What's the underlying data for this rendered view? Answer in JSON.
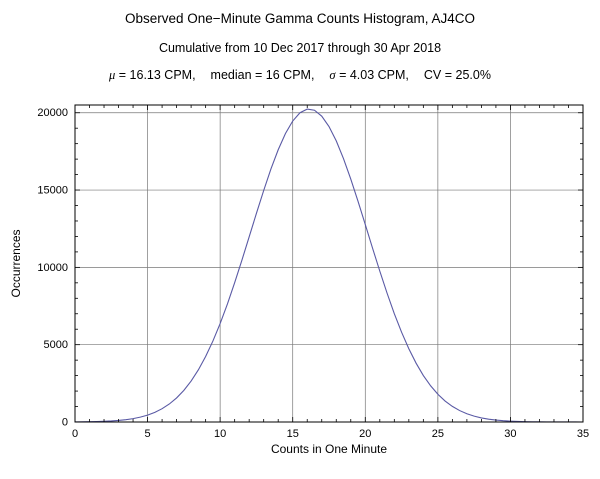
{
  "header": {
    "title": "Observed One−Minute Gamma Counts Histogram, AJ4CO",
    "subtitle": "Cumulative from 10 Dec 2017 through 30 Apr 2018",
    "stats": {
      "mu_sym": "μ",
      "mu_val": " = 16.13 CPM,",
      "median": "median = 16 CPM,",
      "sigma_sym": "σ",
      "sigma_val": " = 4.03 CPM,",
      "cv": "CV = 25.0%"
    }
  },
  "chart_data": {
    "type": "line",
    "title": "Observed One−Minute Gamma Counts Histogram, AJ4CO",
    "subtitle": "Cumulative from 10 Dec 2017 through 30 Apr 2018",
    "stats_line": "μ = 16.13 CPM,   median = 16 CPM,   σ = 4.03 CPM,   CV = 25.0%",
    "xlabel": "Counts in One Minute",
    "ylabel": "Occurrences",
    "xlim": [
      0,
      35
    ],
    "ylim": [
      0,
      20500
    ],
    "xticks": [
      0,
      5,
      10,
      15,
      20,
      25,
      30,
      35
    ],
    "yticks": [
      0,
      5000,
      10000,
      15000,
      20000
    ],
    "x_minor_step": 1,
    "y_minor_step": 1000,
    "grid": true,
    "grid_color": "#787878",
    "line_color": "#5a5aa5",
    "frame_color": "#000000",
    "mean_cpm": 16.13,
    "median_cpm": 16,
    "sigma_cpm": 4.03,
    "cv_percent": 25.0,
    "x": [
      0,
      0.5,
      1,
      1.5,
      2,
      2.5,
      3,
      3.5,
      4,
      4.5,
      5,
      5.5,
      6,
      6.5,
      7,
      7.5,
      8,
      8.5,
      9,
      9.5,
      10,
      10.5,
      11,
      11.5,
      12,
      12.5,
      13,
      13.5,
      14,
      14.5,
      15,
      15.5,
      16,
      16.5,
      17,
      17.5,
      18,
      18.5,
      19,
      19.5,
      20,
      20.5,
      21,
      21.5,
      22,
      22.5,
      23,
      23.5,
      24,
      24.5,
      25,
      25.5,
      26,
      26.5,
      27,
      27.5,
      28,
      28.5,
      29,
      29.5,
      30,
      30.5,
      31,
      31.5,
      32,
      32.5,
      33,
      33.5,
      34,
      34.5,
      35
    ],
    "y": [
      7,
      11,
      18,
      28,
      43,
      66,
      100,
      149,
      218,
      315,
      446,
      624,
      860,
      1165,
      1557,
      2047,
      2646,
      3373,
      4233,
      5233,
      6367,
      7630,
      9007,
      10465,
      11977,
      13493,
      14971,
      16362,
      17605,
      18656,
      19464,
      20000,
      20234,
      20160,
      19779,
      19107,
      18178,
      17030,
      15710,
      14271,
      12766,
      11246,
      9756,
      8333,
      7007,
      5806,
      4735,
      3804,
      3006,
      2342,
      1796,
      1356,
      1009,
      739,
      533,
      378,
      265,
      182,
      124,
      82,
      54,
      35,
      22,
      14,
      9,
      5,
      3,
      2,
      1,
      1,
      0
    ]
  }
}
